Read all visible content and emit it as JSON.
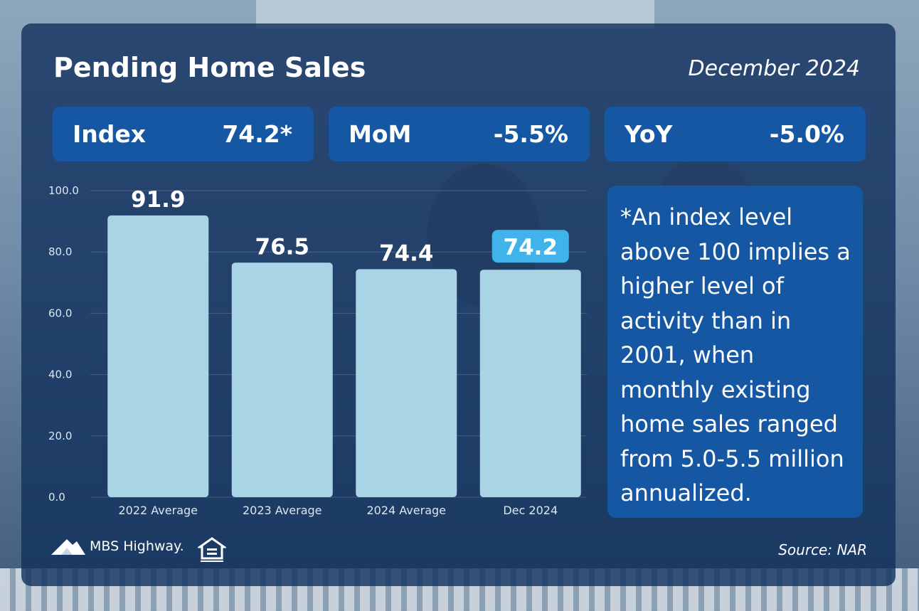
{
  "header": {
    "title": "Pending Home Sales",
    "date": "December 2024"
  },
  "stats": [
    {
      "label": "Index",
      "value": "74.2*"
    },
    {
      "label": "MoM",
      "value": "-5.5%"
    },
    {
      "label": "YoY",
      "value": "-5.0%"
    }
  ],
  "note": "*An index level above 100 implies a higher level of activity than in 2001, when monthly existing home sales ranged from 5.0-5.5 million annualized.",
  "footer": {
    "brand": "MBS Highway.",
    "source": "Source: NAR"
  },
  "chart_data": {
    "type": "bar",
    "categories": [
      "2022 Average",
      "2023 Average",
      "2024 Average",
      "Dec 2024"
    ],
    "values": [
      91.9,
      76.5,
      74.4,
      74.2
    ],
    "data_labels": [
      "91.9",
      "76.5",
      "74.4",
      "74.2"
    ],
    "highlighted_category": "Dec 2024",
    "yticks": [
      "0.0",
      "20.0",
      "40.0",
      "60.0",
      "80.0",
      "100.0"
    ],
    "ylim": [
      0,
      100
    ],
    "grid": true,
    "colors": {
      "bar": "#a9d4e6",
      "highlight_label_bg": "#3fb3ea",
      "tick_text": "#dde6ef"
    }
  }
}
